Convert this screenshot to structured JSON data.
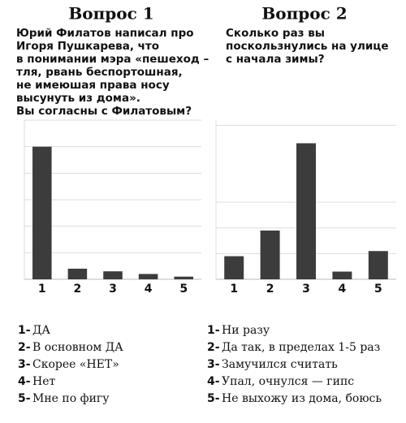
{
  "chart_data": [
    {
      "type": "bar",
      "title": "Вопрос 1",
      "question": [
        "Юрий Филатов написал про",
        "Игоря Пушкарева, что",
        "в понимании мэра «пешеход –",
        "тля, рвань беспортошная,",
        "не имеюшая права носу",
        "высунуть из дома».",
        "Вы согласны с Филатовым?"
      ],
      "categories": [
        "1",
        "2",
        "3",
        "4",
        "5"
      ],
      "values": [
        5.0,
        0.4,
        0.3,
        0.2,
        0.1
      ],
      "color": "#3c3c3c",
      "ylim": [
        0,
        6
      ],
      "yticks": [
        1,
        2,
        3,
        4,
        5,
        6
      ],
      "show_tick_labels": false,
      "grid": true,
      "legend": [
        {
          "key": "1-",
          "text": "ДА"
        },
        {
          "key": "2-",
          "text": "В основном ДА"
        },
        {
          "key": "3-",
          "text": "Скорее «НЕТ»"
        },
        {
          "key": "4-",
          "text": "Нет"
        },
        {
          "key": "5-",
          "text": "Мне по фигу"
        }
      ]
    },
    {
      "type": "bar",
      "title": "Вопрос 2",
      "question": [
        "Сколько раз вы",
        "поскользнулись на улице",
        "с начала зимы?"
      ],
      "categories": [
        "1",
        "2",
        "3",
        "4",
        "5"
      ],
      "values": [
        0.9,
        1.9,
        5.3,
        0.3,
        1.1
      ],
      "color": "#3c3c3c",
      "ylim": [
        0,
        6.2
      ],
      "yticks": [
        1,
        2,
        3,
        6
      ],
      "show_tick_labels": false,
      "grid": true,
      "legend": [
        {
          "key": "1-",
          "text": "Ни разу"
        },
        {
          "key": "2-",
          "text": "Да так, в пределах 1-5 раз"
        },
        {
          "key": "3-",
          "text": "Замучился считать"
        },
        {
          "key": "4-",
          "text": "Упал, очнулся — гипс"
        },
        {
          "key": "5-",
          "text": "Не выхожу из дома, боюсь"
        }
      ]
    }
  ]
}
